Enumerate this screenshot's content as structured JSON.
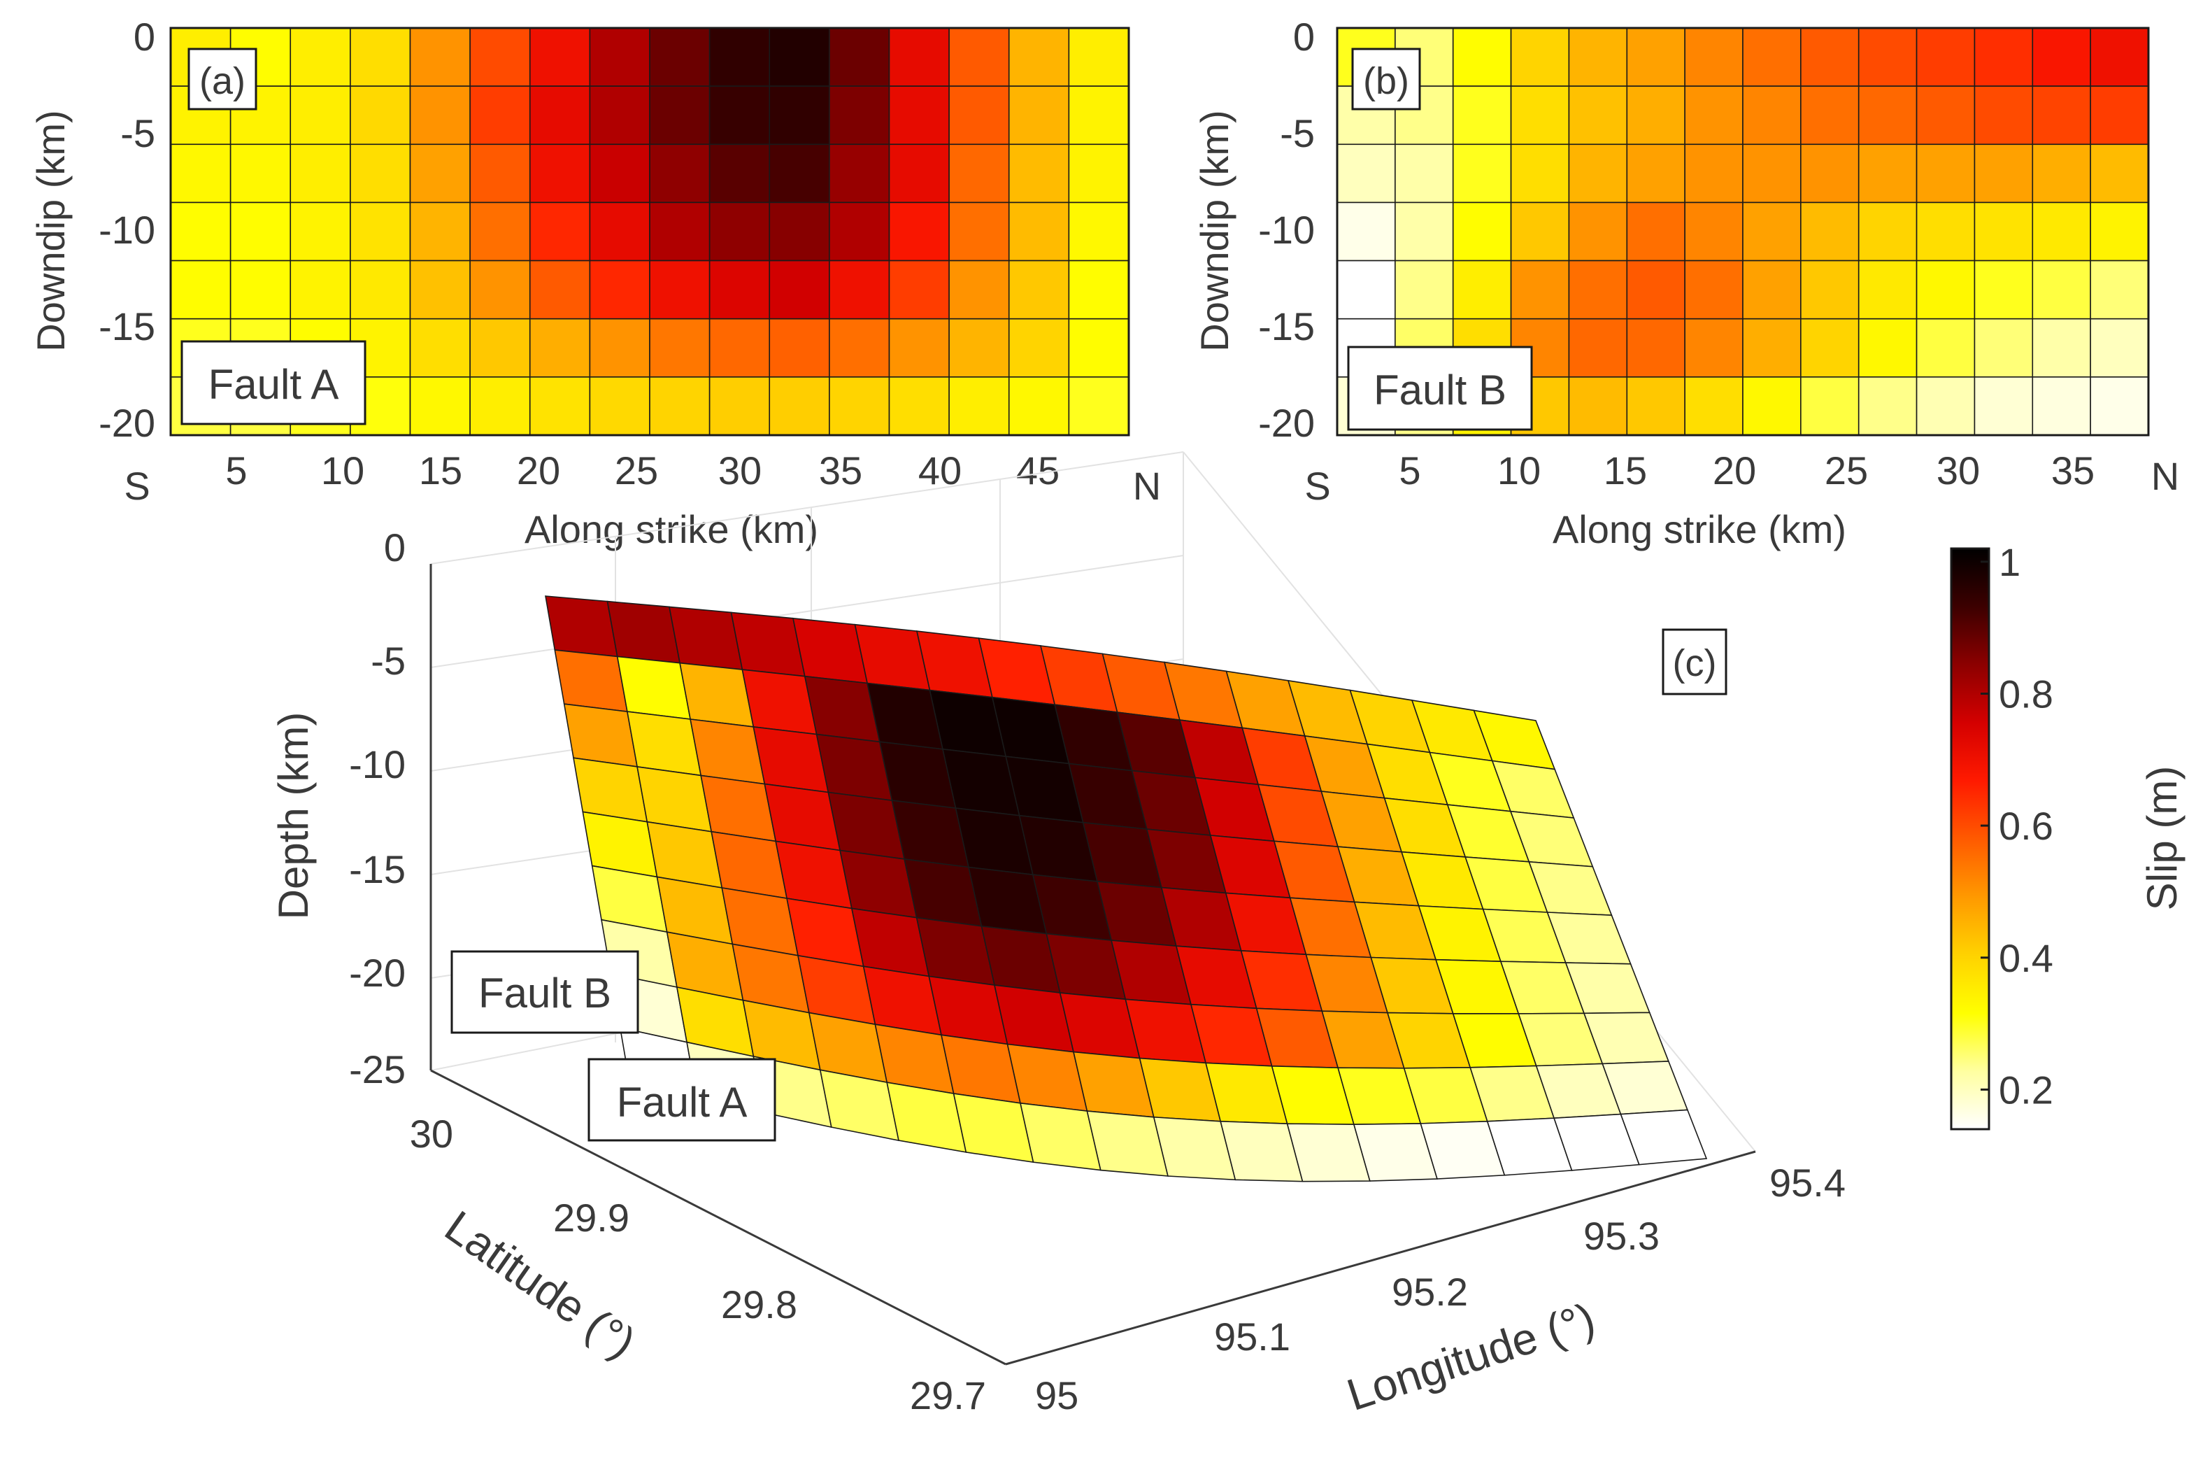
{
  "colors": {
    "colormap": [
      "#ffffff",
      "#ffffa0",
      "#ffff00",
      "#ffd200",
      "#ff9900",
      "#ff5a00",
      "#ff1a00",
      "#d40000",
      "#8c0000",
      "#3c0000",
      "#000000"
    ],
    "cell_border": "#1a1a1a",
    "text": "#3a3a3a",
    "grid": "#e2e2e2"
  },
  "chart_data": [
    {
      "id": "a",
      "type": "heatmap",
      "panel_label": "(a)",
      "fault_label": "Fault A",
      "xlabel": "Along strike (km)",
      "ylabel": "Downdip (km)",
      "x_ticks": [
        "5",
        "10",
        "15",
        "20",
        "25",
        "30",
        "35",
        "40",
        "45"
      ],
      "y_ticks": [
        "0",
        "-5",
        "-10",
        "-15",
        "-20"
      ],
      "xlim": [
        0,
        48
      ],
      "ylim": [
        -21,
        0
      ],
      "left_end": "S",
      "right_end": "N",
      "unit": "Slip (m)",
      "slip_grid": [
        [
          0.35,
          0.32,
          0.35,
          0.38,
          0.5,
          0.6,
          0.7,
          0.8,
          0.88,
          0.95,
          0.97,
          0.88,
          0.72,
          0.58,
          0.45,
          0.35
        ],
        [
          0.34,
          0.34,
          0.35,
          0.39,
          0.5,
          0.62,
          0.72,
          0.8,
          0.88,
          0.94,
          0.95,
          0.86,
          0.72,
          0.58,
          0.45,
          0.34
        ],
        [
          0.33,
          0.33,
          0.35,
          0.38,
          0.48,
          0.58,
          0.7,
          0.77,
          0.84,
          0.9,
          0.92,
          0.83,
          0.72,
          0.56,
          0.44,
          0.34
        ],
        [
          0.32,
          0.32,
          0.34,
          0.37,
          0.45,
          0.55,
          0.65,
          0.72,
          0.8,
          0.84,
          0.85,
          0.8,
          0.68,
          0.55,
          0.44,
          0.33
        ],
        [
          0.32,
          0.32,
          0.34,
          0.36,
          0.43,
          0.5,
          0.58,
          0.65,
          0.7,
          0.74,
          0.76,
          0.7,
          0.62,
          0.5,
          0.42,
          0.32
        ],
        [
          0.3,
          0.3,
          0.32,
          0.34,
          0.38,
          0.42,
          0.46,
          0.5,
          0.54,
          0.56,
          0.57,
          0.55,
          0.5,
          0.45,
          0.4,
          0.32
        ],
        [
          0.28,
          0.28,
          0.3,
          0.31,
          0.33,
          0.35,
          0.37,
          0.39,
          0.4,
          0.41,
          0.41,
          0.4,
          0.38,
          0.35,
          0.33,
          0.3
        ]
      ]
    },
    {
      "id": "b",
      "type": "heatmap",
      "panel_label": "(b)",
      "fault_label": "Fault B",
      "xlabel": "Along strike (km)",
      "ylabel": "Downdip (km)",
      "x_ticks": [
        "5",
        "10",
        "15",
        "20",
        "25",
        "30",
        "35"
      ],
      "y_ticks": [
        "0",
        "-5",
        "-10",
        "-15",
        "-20"
      ],
      "xlim": [
        0,
        40
      ],
      "ylim": [
        -21,
        0
      ],
      "left_end": "S",
      "right_end": "N",
      "unit": "Slip (m)",
      "slip_grid": [
        [
          0.3,
          0.25,
          0.32,
          0.4,
          0.45,
          0.48,
          0.52,
          0.55,
          0.58,
          0.6,
          0.62,
          0.64,
          0.68,
          0.7
        ],
        [
          0.22,
          0.24,
          0.3,
          0.38,
          0.43,
          0.46,
          0.5,
          0.52,
          0.55,
          0.56,
          0.58,
          0.6,
          0.61,
          0.62
        ],
        [
          0.2,
          0.22,
          0.3,
          0.38,
          0.45,
          0.48,
          0.5,
          0.5,
          0.5,
          0.48,
          0.48,
          0.48,
          0.46,
          0.44
        ],
        [
          0.16,
          0.22,
          0.32,
          0.42,
          0.5,
          0.55,
          0.52,
          0.48,
          0.44,
          0.4,
          0.38,
          0.37,
          0.36,
          0.34
        ],
        [
          0.14,
          0.24,
          0.35,
          0.5,
          0.55,
          0.58,
          0.55,
          0.48,
          0.42,
          0.36,
          0.33,
          0.3,
          0.28,
          0.25
        ],
        [
          0.14,
          0.26,
          0.38,
          0.52,
          0.56,
          0.56,
          0.52,
          0.46,
          0.4,
          0.33,
          0.28,
          0.25,
          0.22,
          0.2
        ],
        [
          0.18,
          0.24,
          0.34,
          0.42,
          0.44,
          0.42,
          0.38,
          0.33,
          0.28,
          0.24,
          0.21,
          0.18,
          0.17,
          0.16
        ]
      ]
    },
    {
      "id": "c",
      "type": "surface3d",
      "panel_label": "(c)",
      "xlabel": "Longitude  (°)",
      "ylabel": "Latitude  (°)",
      "zlabel": "Depth (km)",
      "z_ticks": [
        "0",
        "-5",
        "-10",
        "-15",
        "-20",
        "-25"
      ],
      "lat_ticks": [
        "30",
        "29.9",
        "29.8",
        "29.7"
      ],
      "lon_ticks": [
        "95",
        "95.1",
        "95.2",
        "95.3",
        "95.4"
      ],
      "fault_labels": [
        "Fault B",
        "Fault A"
      ],
      "slip_grid": [
        [
          0.8,
          0.82,
          0.8,
          0.78,
          0.75,
          0.72,
          0.7,
          0.66,
          0.62,
          0.58,
          0.54,
          0.48,
          0.44,
          0.4,
          0.36,
          0.33
        ],
        [
          0.55,
          0.32,
          0.45,
          0.7,
          0.85,
          0.97,
          1.0,
          1.0,
          0.95,
          0.9,
          0.78,
          0.62,
          0.48,
          0.38,
          0.3,
          0.26
        ],
        [
          0.48,
          0.38,
          0.52,
          0.72,
          0.86,
          0.96,
          0.99,
          0.99,
          0.94,
          0.88,
          0.76,
          0.6,
          0.48,
          0.38,
          0.29,
          0.25
        ],
        [
          0.4,
          0.4,
          0.55,
          0.72,
          0.86,
          0.94,
          0.98,
          0.97,
          0.92,
          0.86,
          0.74,
          0.58,
          0.46,
          0.36,
          0.28,
          0.24
        ],
        [
          0.34,
          0.42,
          0.56,
          0.7,
          0.84,
          0.92,
          0.96,
          0.93,
          0.88,
          0.8,
          0.7,
          0.55,
          0.44,
          0.34,
          0.27,
          0.23
        ],
        [
          0.28,
          0.44,
          0.55,
          0.66,
          0.78,
          0.86,
          0.88,
          0.86,
          0.8,
          0.72,
          0.64,
          0.52,
          0.42,
          0.33,
          0.26,
          0.22
        ],
        [
          0.22,
          0.46,
          0.54,
          0.62,
          0.7,
          0.74,
          0.76,
          0.74,
          0.7,
          0.65,
          0.58,
          0.48,
          0.4,
          0.32,
          0.25,
          0.21
        ],
        [
          0.18,
          0.38,
          0.44,
          0.48,
          0.52,
          0.54,
          0.52,
          0.48,
          0.42,
          0.36,
          0.32,
          0.3,
          0.28,
          0.24,
          0.2,
          0.18
        ],
        [
          0.14,
          0.2,
          0.24,
          0.26,
          0.28,
          0.28,
          0.26,
          0.24,
          0.22,
          0.2,
          0.18,
          0.16,
          0.15,
          0.14,
          0.14,
          0.14
        ]
      ]
    }
  ],
  "colorbar": {
    "label": "Slip (m)",
    "ticks": [
      "0.2",
      "0.4",
      "0.6",
      "0.8",
      "1"
    ],
    "tick_values": [
      0.2,
      0.4,
      0.6,
      0.8,
      1.0
    ],
    "range": [
      0.14,
      1.02
    ]
  }
}
